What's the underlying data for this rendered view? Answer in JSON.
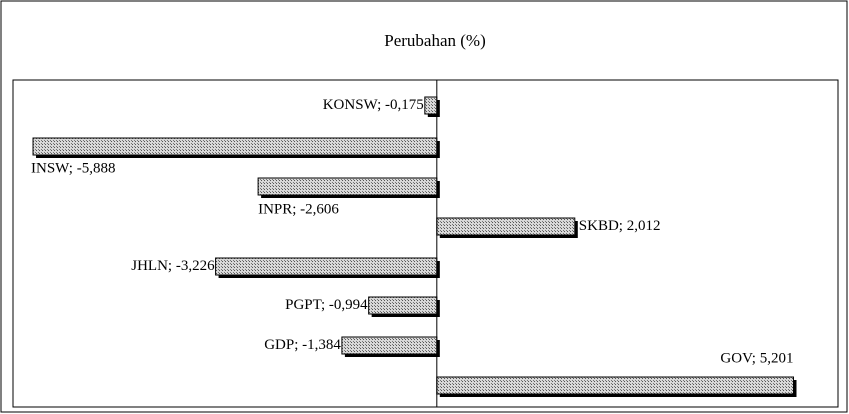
{
  "chart_data": {
    "type": "bar",
    "orientation": "horizontal",
    "title": "Perubahan (%)",
    "values": [
      -0.175,
      -5.888,
      -2.606,
      2.012,
      -3.226,
      -0.994,
      -1.384,
      5.201
    ],
    "value_labels": [
      "KONSW; -0,175",
      "INSW; -5,888",
      "INPR; -2,606",
      "SKBD; 2,012",
      "JHLN; -3,226",
      "PGPT; -0,994",
      "GDP; -1,384",
      "GOV; 5,201"
    ],
    "xlim": [
      -6.18,
      5.85
    ]
  }
}
